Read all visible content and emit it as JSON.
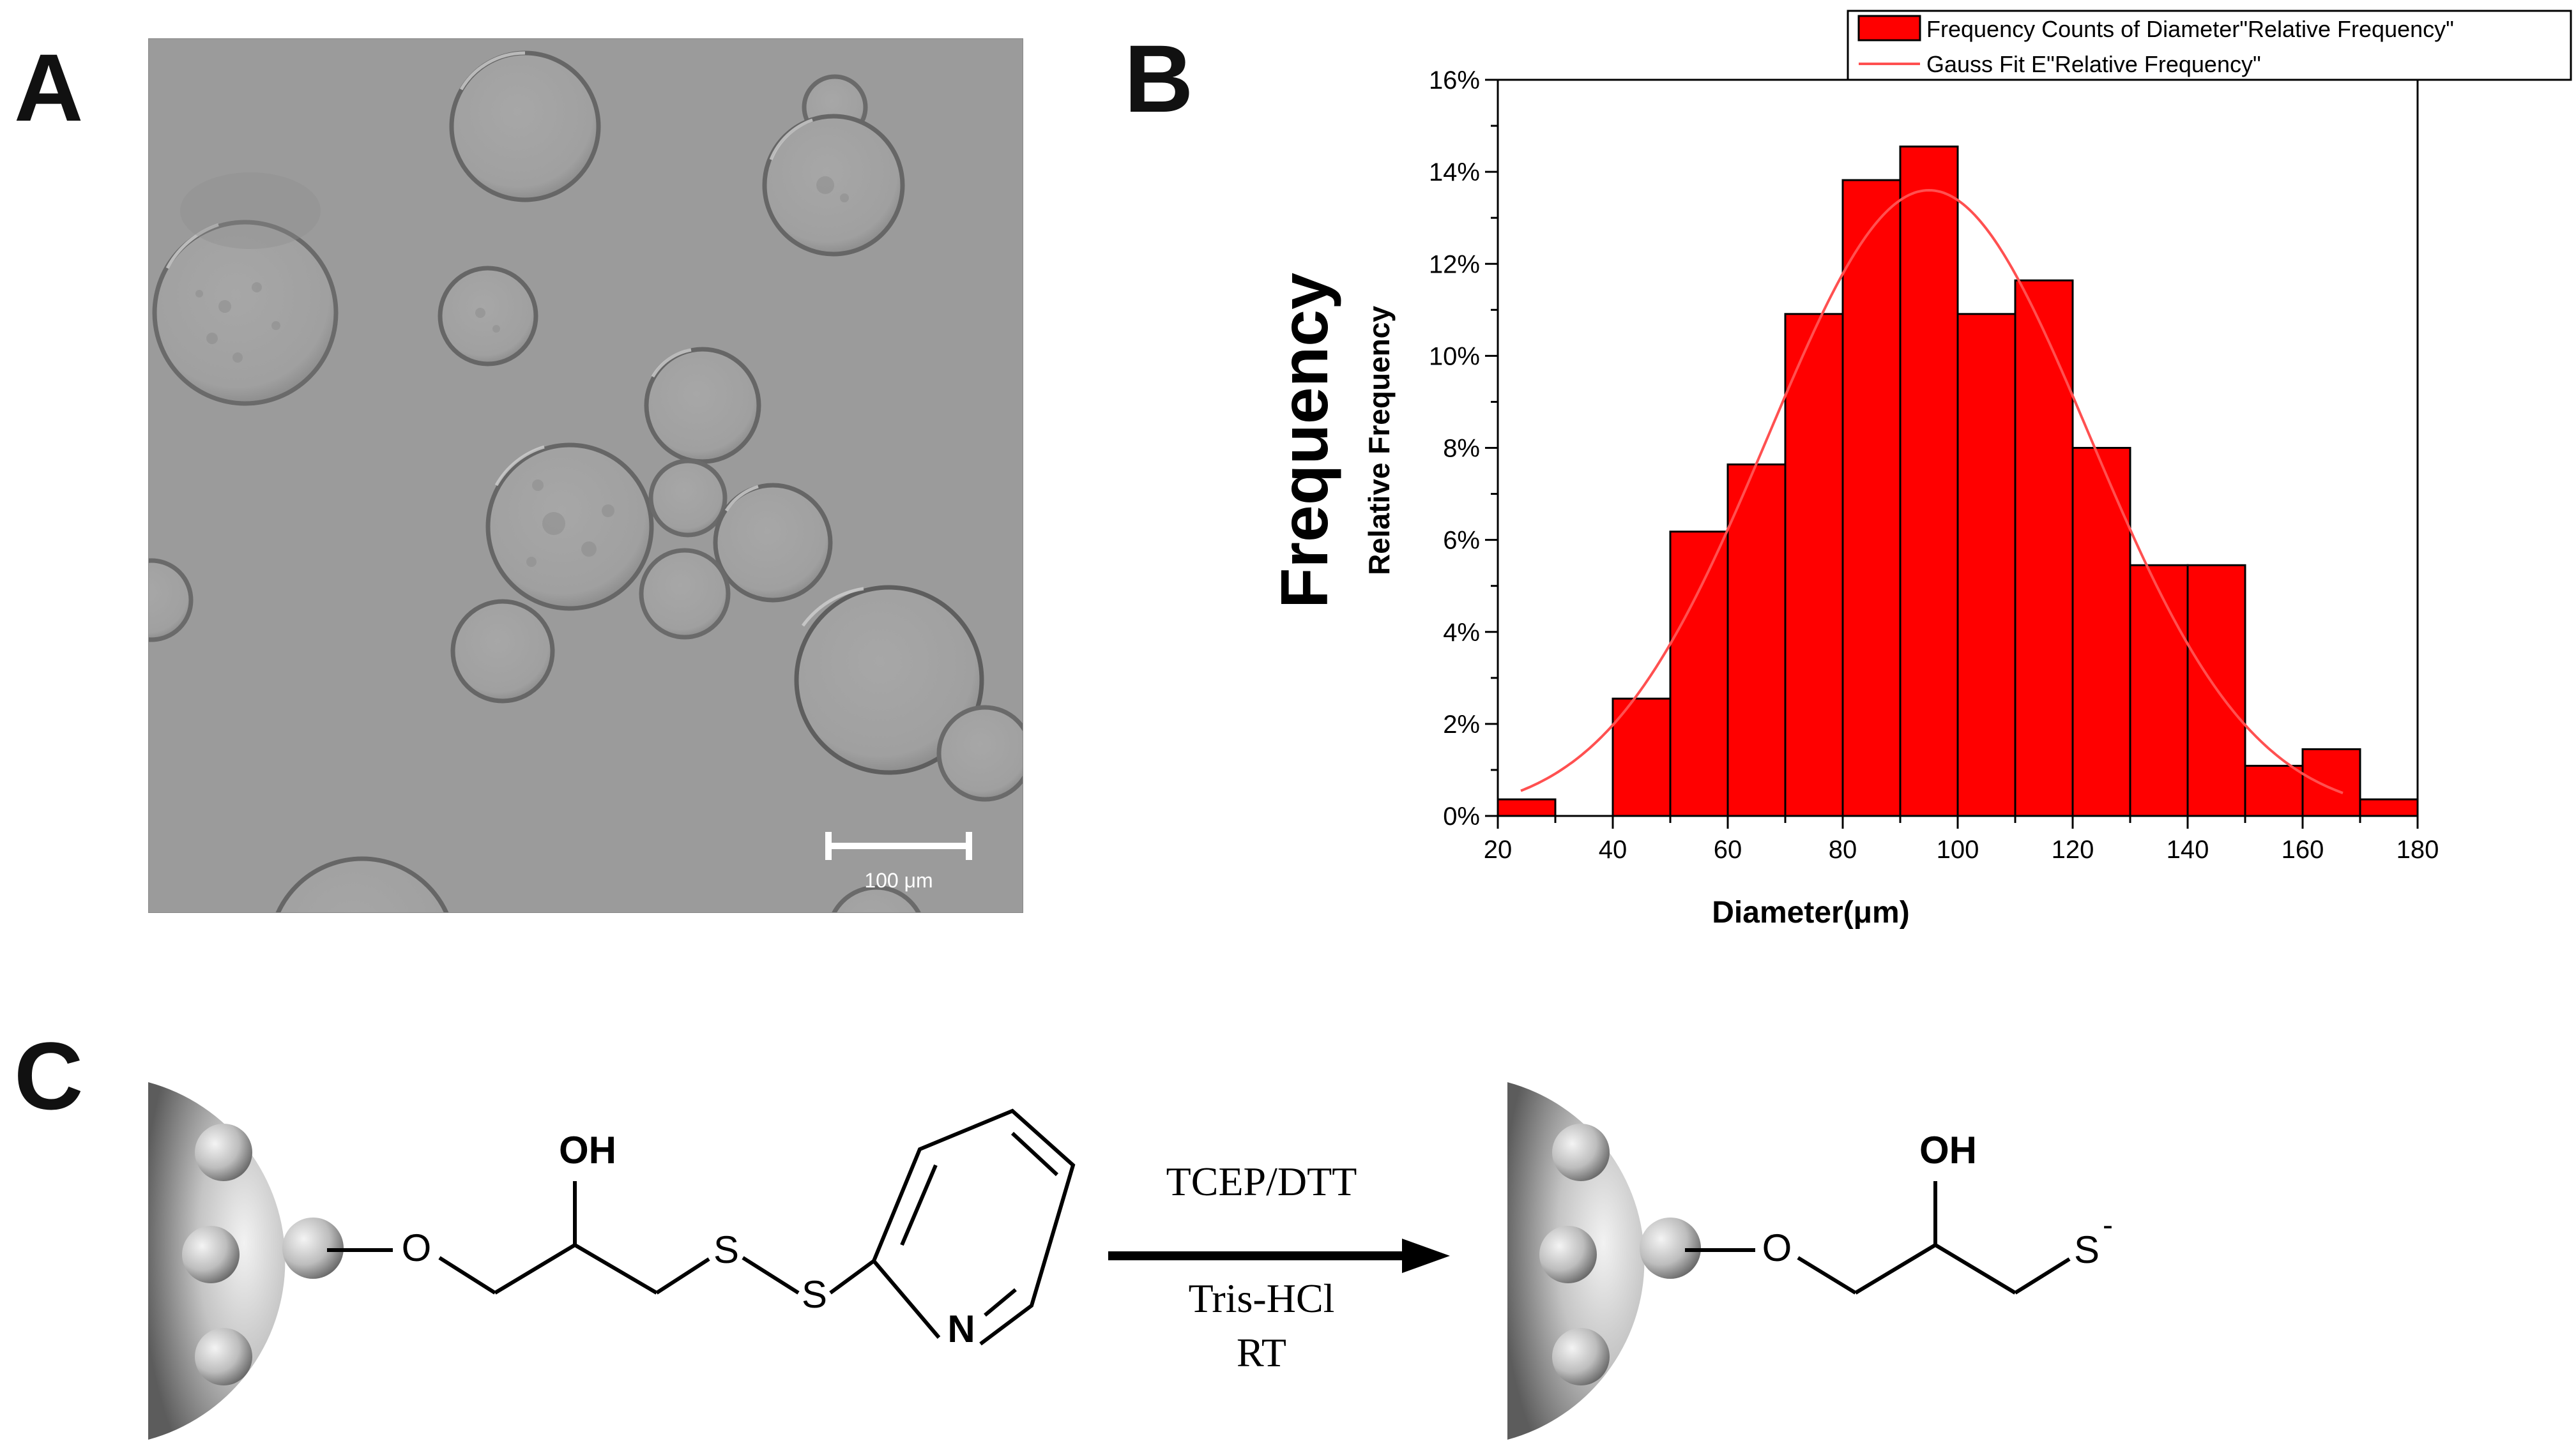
{
  "panels": {
    "a": "A",
    "b": "B",
    "c": "C"
  },
  "micrograph": {
    "scale_bar_label": "100 μm",
    "colors": {
      "background": "#9a9a9a",
      "droplet": "#a3a3a3",
      "rim_dark": "#5e5e5e",
      "rim_light": "#d4d4d4"
    }
  },
  "chart_data": {
    "type": "bar",
    "title": "",
    "big_ylabel": "Frequency",
    "ylabel": "Relative Frequency",
    "xlabel": "Diameter(μm)",
    "xlim": [
      20,
      180
    ],
    "ylim": [
      0,
      16
    ],
    "xticks": [
      20,
      40,
      60,
      80,
      100,
      120,
      140,
      160,
      180
    ],
    "yticks": [
      0,
      2,
      4,
      6,
      8,
      10,
      12,
      14,
      16
    ],
    "ytick_labels": [
      "0%",
      "2%",
      "4%",
      "6%",
      "8%",
      "10%",
      "12%",
      "14%",
      "16%"
    ],
    "bin_width": 10,
    "bar_color": "#ff0000",
    "bins": [
      {
        "center": 25,
        "value": 0.36
      },
      {
        "center": 35,
        "value": 0
      },
      {
        "center": 45,
        "value": 2.55
      },
      {
        "center": 55,
        "value": 6.18
      },
      {
        "center": 65,
        "value": 7.64
      },
      {
        "center": 75,
        "value": 10.91
      },
      {
        "center": 85,
        "value": 13.82
      },
      {
        "center": 95,
        "value": 14.55
      },
      {
        "center": 105,
        "value": 10.91
      },
      {
        "center": 115,
        "value": 11.64
      },
      {
        "center": 125,
        "value": 8.0
      },
      {
        "center": 135,
        "value": 5.45
      },
      {
        "center": 145,
        "value": 5.45
      },
      {
        "center": 155,
        "value": 1.09
      },
      {
        "center": 165,
        "value": 1.45
      },
      {
        "center": 175,
        "value": 0.36
      }
    ],
    "gauss_fit": {
      "amplitude": 13.6,
      "mean": 95,
      "sigma": 28,
      "x_range": [
        24,
        167
      ],
      "color": "#ff5050"
    },
    "legend": {
      "position": "top-right",
      "entries": [
        "Frequency Counts of Diameter\"Relative Frequency\"",
        "Gauss Fit E\"Relative Frequency\""
      ]
    }
  },
  "scheme": {
    "left_oh": "OH",
    "left_o": "O",
    "left_s1": "S",
    "left_s2": "S",
    "left_n": "N",
    "reagent_top": "TCEP/DTT",
    "reagent_bottom1": "Tris-HCl",
    "reagent_bottom2": "RT",
    "right_oh": "OH",
    "right_o": "O",
    "right_s": "S",
    "right_s_charge": "-"
  }
}
